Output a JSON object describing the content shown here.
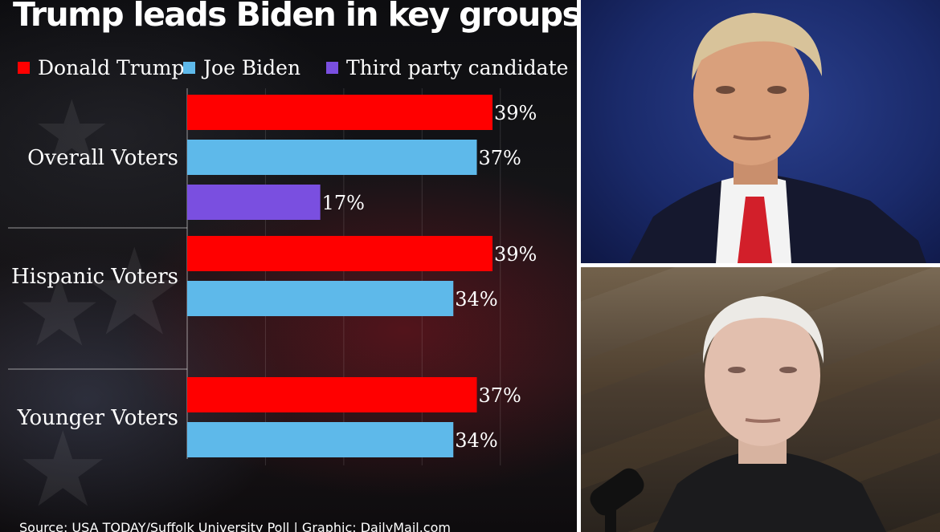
{
  "chart_data": {
    "type": "bar",
    "orientation": "horizontal",
    "title": "Trump leads Biden in key groups",
    "categories": [
      "Overall Voters",
      "Hispanic Voters",
      "Younger Voters"
    ],
    "series": [
      {
        "name": "Donald Trump",
        "color": "#ff0000",
        "values": [
          39,
          39,
          37
        ],
        "labels": [
          "39%",
          "39%",
          "37%"
        ]
      },
      {
        "name": "Joe Biden",
        "color": "#5eb9ea",
        "values": [
          37,
          34,
          34
        ],
        "labels": [
          "37%",
          "34%",
          "34%"
        ]
      },
      {
        "name": "Third party candidate",
        "color": "#7a4fe0",
        "values": [
          17,
          null,
          null
        ],
        "labels": [
          "17%",
          null,
          null
        ]
      }
    ],
    "xlim": [
      0,
      50
    ],
    "grid": true,
    "legend": "top",
    "source": "Source: USA TODAY/Suffolk University Poll  |  Graphic: DailyMail.com"
  },
  "photos": [
    {
      "name": "trump-photo",
      "subject": "Donald Trump"
    },
    {
      "name": "biden-photo",
      "subject": "Joe Biden"
    }
  ]
}
